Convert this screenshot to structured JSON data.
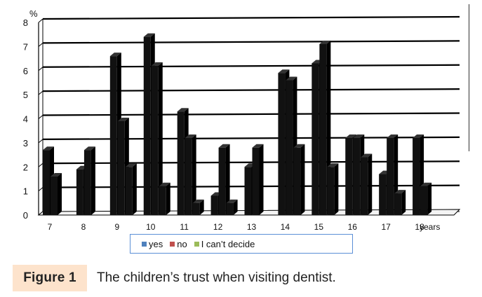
{
  "chart_data": {
    "type": "bar",
    "style": "3d-clustered-column",
    "y_unit_label": "%",
    "x_unit_label": "years",
    "categories": [
      "7",
      "8",
      "9",
      "10",
      "11",
      "12",
      "13",
      "14",
      "15",
      "16",
      "17",
      "18"
    ],
    "series": [
      {
        "name": "yes",
        "color": "#4f81bd",
        "render_color": "#111111",
        "values": [
          2.7,
          1.9,
          6.6,
          7.4,
          4.3,
          0.8,
          2.0,
          5.9,
          6.3,
          3.2,
          1.7,
          3.2
        ]
      },
      {
        "name": "no",
        "color": "#c0504d",
        "render_color": "#111111",
        "values": [
          1.6,
          2.7,
          3.9,
          6.2,
          3.2,
          2.8,
          2.8,
          5.6,
          7.1,
          3.2,
          3.2,
          1.2
        ]
      },
      {
        "name": "I can’t decide",
        "color": "#9bbb59",
        "render_color": "#111111",
        "values": [
          0,
          0,
          2.0,
          1.2,
          0.5,
          0.5,
          0,
          2.8,
          2.0,
          2.4,
          0.9,
          0
        ]
      }
    ],
    "yticks": [
      "0",
      "1",
      "2",
      "3",
      "4",
      "5",
      "6",
      "7",
      "8"
    ],
    "ylim": [
      0,
      8
    ],
    "grid": true,
    "legend_placement": "bottom"
  },
  "caption": {
    "label": "Figure 1",
    "text": "The children’s trust when visiting dentist."
  }
}
